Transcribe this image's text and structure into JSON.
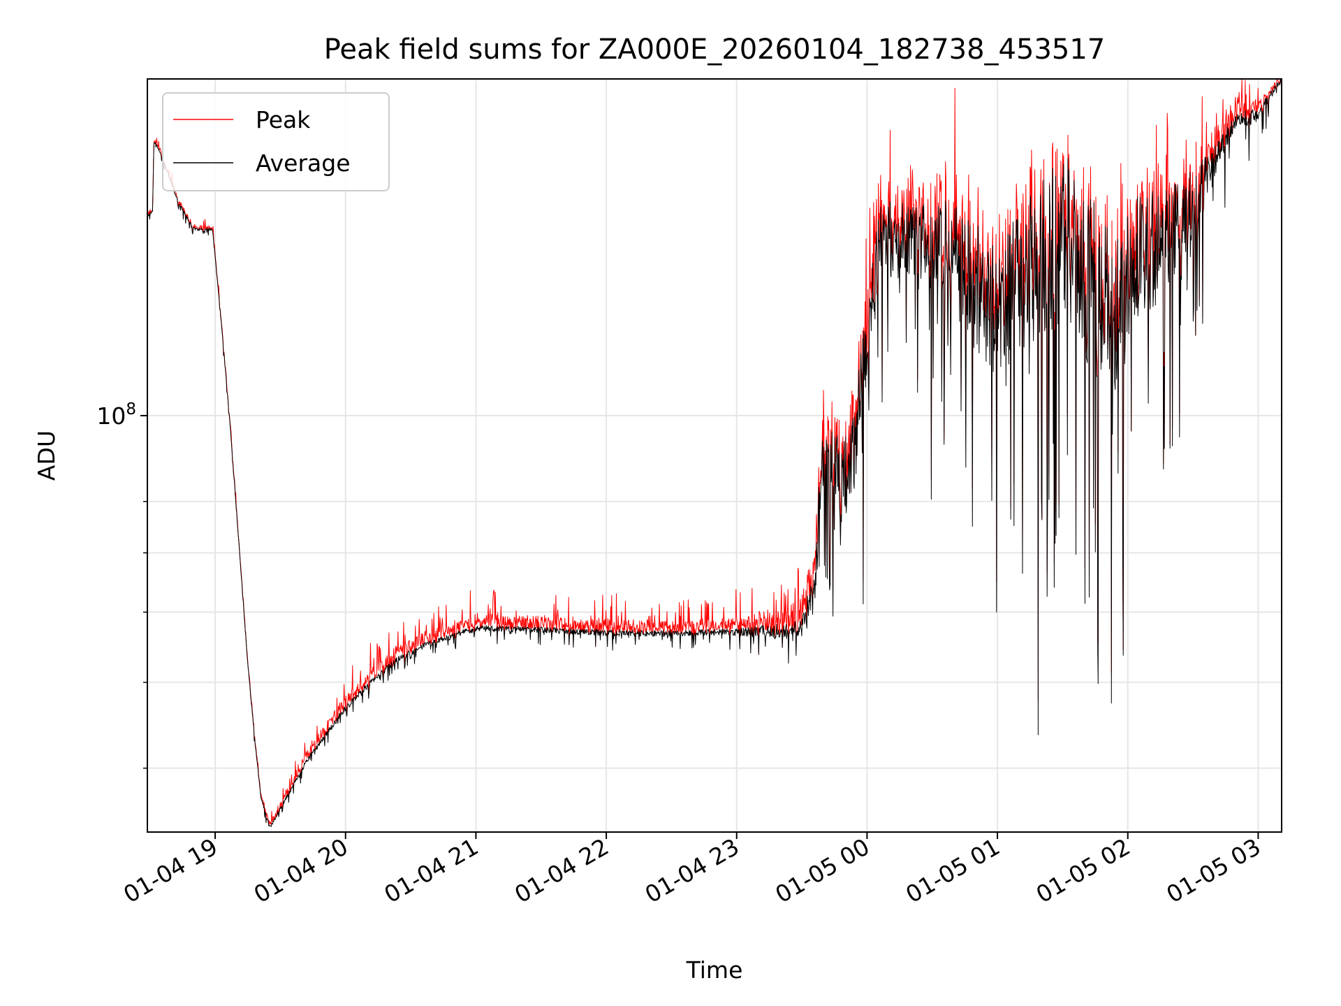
{
  "chart_data": {
    "type": "line",
    "title": "Peak field sums for ZA000E_20260104_182738_453517",
    "xlabel": "Time",
    "ylabel": "ADU",
    "yscale": "log",
    "ylim_log10": [
      7.53,
      8.38
    ],
    "xlim_hours": [
      18.48,
      27.18
    ],
    "grid": true,
    "legend_position": "upper left",
    "x_ticks": [
      {
        "hour": 19,
        "label": "01-04 19"
      },
      {
        "hour": 20,
        "label": "01-04 20"
      },
      {
        "hour": 21,
        "label": "01-04 21"
      },
      {
        "hour": 22,
        "label": "01-04 22"
      },
      {
        "hour": 23,
        "label": "01-04 23"
      },
      {
        "hour": 24,
        "label": "01-05 00"
      },
      {
        "hour": 25,
        "label": "01-05 01"
      },
      {
        "hour": 26,
        "label": "01-05 02"
      },
      {
        "hour": 27,
        "label": "01-05 03"
      }
    ],
    "y_major_tick": {
      "log10": 8,
      "base": "10",
      "exponent": "8"
    },
    "y_minor_ticks_log10": [
      7.6021,
      7.699,
      7.7782,
      7.8451,
      7.9031
    ],
    "series": [
      {
        "name": "Peak",
        "color": "#ff0000"
      },
      {
        "name": "Average",
        "color": "#000000"
      }
    ],
    "average_profile": {
      "time_hours": [
        18.48,
        18.52,
        18.53,
        18.57,
        18.62,
        18.72,
        18.82,
        18.85,
        18.98,
        19.05,
        19.12,
        19.18,
        19.25,
        19.3,
        19.35,
        19.42,
        19.55,
        19.7,
        19.85,
        20.0,
        20.2,
        20.4,
        20.6,
        20.8,
        21.0,
        21.5,
        22.0,
        22.5,
        22.9,
        23.1,
        23.3,
        23.5,
        23.6,
        23.65,
        23.7,
        23.8,
        23.9,
        24.0,
        24.1,
        24.3,
        24.6,
        24.8,
        25.0,
        25.2,
        25.35,
        25.55,
        25.7,
        25.9,
        26.1,
        26.3,
        26.5,
        26.65,
        26.8,
        27.0,
        27.18
      ],
      "log10_adu": [
        8.225,
        8.23,
        8.31,
        8.3,
        8.28,
        8.24,
        8.215,
        8.21,
        8.21,
        8.1,
        7.98,
        7.86,
        7.72,
        7.64,
        7.57,
        7.535,
        7.57,
        7.61,
        7.64,
        7.67,
        7.7,
        7.725,
        7.74,
        7.75,
        7.76,
        7.758,
        7.755,
        7.754,
        7.756,
        7.756,
        7.757,
        7.76,
        7.8,
        7.95,
        7.97,
        7.92,
        7.96,
        8.08,
        8.2,
        8.2,
        8.19,
        8.15,
        8.12,
        8.15,
        8.18,
        8.2,
        8.15,
        8.12,
        8.18,
        8.2,
        8.24,
        8.28,
        8.33,
        8.34,
        8.38
      ]
    },
    "noise_profile": {
      "time_hours": [
        18.48,
        19.42,
        20.0,
        21.0,
        22.9,
        23.5,
        23.6,
        23.9,
        24.3,
        24.8,
        25.3,
        25.8,
        26.3,
        26.5,
        26.7,
        27.18
      ],
      "amplitude_log10": [
        0.003,
        0.004,
        0.006,
        0.007,
        0.007,
        0.02,
        0.07,
        0.1,
        0.08,
        0.14,
        0.18,
        0.2,
        0.12,
        0.08,
        0.03,
        0.005
      ]
    },
    "spike_profile": {
      "time_hours": [
        18.48,
        19.42,
        19.8,
        20.9,
        22.9,
        23.5,
        23.9,
        25.0,
        26.5,
        27.18
      ],
      "peak_excess_log10": [
        0.004,
        0.005,
        0.014,
        0.016,
        0.013,
        0.03,
        0.04,
        0.05,
        0.04,
        0.005
      ]
    }
  }
}
